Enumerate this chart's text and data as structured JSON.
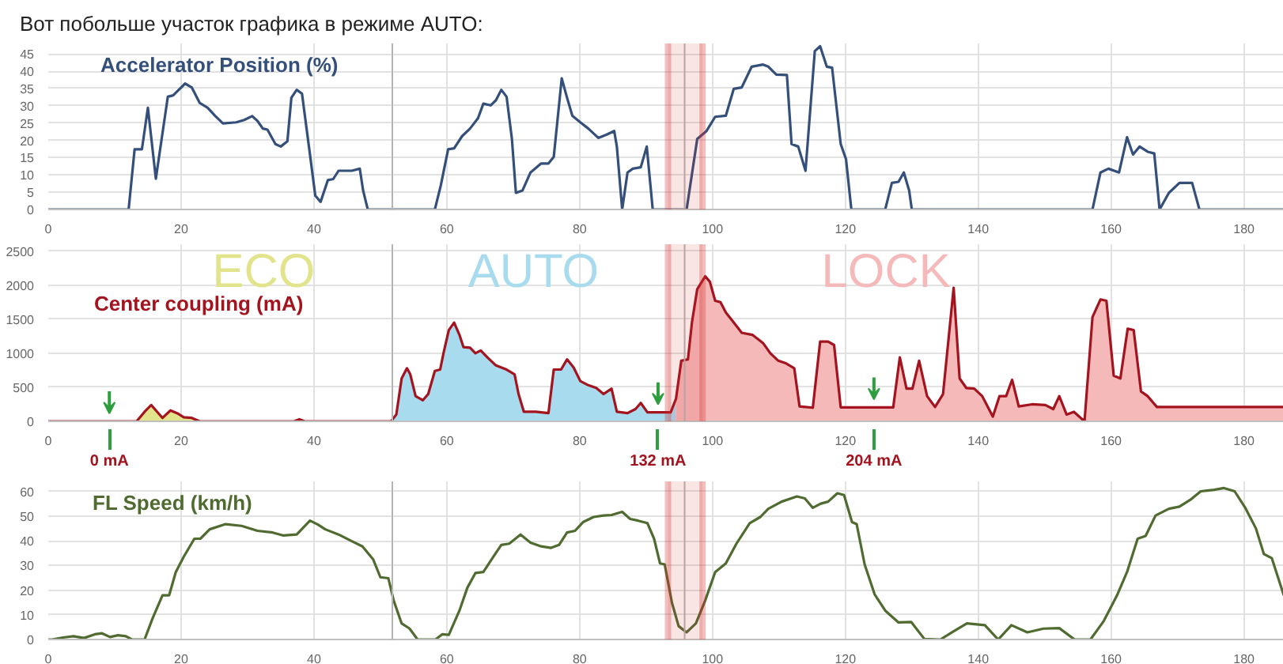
{
  "chart_data": [
    {
      "type": "line",
      "title": "Вот побольше участок графика в режиме AUTO:",
      "xlim": [
        0,
        186
      ],
      "xticks": [
        0,
        20,
        40,
        60,
        80,
        100,
        120,
        140,
        160,
        180
      ],
      "ylim": [
        0,
        48
      ],
      "yticks": [
        0,
        5,
        10,
        15,
        20,
        25,
        30,
        35,
        40,
        45
      ],
      "grid": true,
      "ref_lines": [
        {
          "axis": "x",
          "value": 51.8,
          "color": "#b4b4b4"
        },
        {
          "axis": "x",
          "value": 95.8,
          "color": "#b4b4b4"
        }
      ],
      "bands": [
        {
          "axis": "x",
          "from": 93.3,
          "to": 98.5,
          "color": "#d42b2b"
        }
      ],
      "series": [
        {
          "name": "Accelerator Position (%)",
          "color": "#34507a",
          "x": [
            0,
            12.1,
            13.0,
            14.1,
            15.0,
            16.2,
            18.0,
            18.8,
            20.6,
            21.6,
            22.8,
            24.0,
            25.1,
            26.3,
            28.3,
            29.5,
            30.7,
            31.5,
            32.3,
            33.0,
            34.2,
            35.0,
            36.0,
            36.6,
            37.4,
            38.2,
            39.4,
            40.2,
            41.0,
            42.1,
            42.9,
            43.7,
            45.7,
            46.9,
            47.4,
            48.1,
            58.2,
            59.1,
            60.2,
            61.1,
            62.3,
            63.5,
            64.7,
            65.5,
            66.6,
            67.4,
            68.2,
            69.0,
            69.8,
            70.4,
            71.4,
            72.6,
            74.2,
            75.3,
            76.1,
            77.3,
            78.1,
            78.9,
            80.1,
            81.3,
            82.8,
            84.0,
            85.2,
            85.6,
            86.4,
            87.2,
            88.0,
            89.2,
            90.1,
            91.0,
            96.1,
            97.7,
            99.1,
            100.4,
            102.0,
            103.2,
            104.4,
            105.9,
            107.6,
            108.4,
            109.6,
            111.2,
            111.9,
            112.9,
            114.0,
            115.4,
            116.2,
            117.2,
            118.0,
            119.3,
            120.1,
            120.9,
            126.0,
            127.0,
            128.0,
            128.8,
            129.6,
            130.0,
            157.2,
            158.4,
            159.6,
            161.2,
            162.4,
            163.3,
            164.3,
            165.5,
            166.5,
            167.3,
            168.7,
            170.3,
            172.2,
            173.3,
            186
          ],
          "values": [
            0,
            0,
            17.4,
            17.4,
            29.4,
            8.9,
            32.6,
            33,
            36.4,
            35.3,
            30.8,
            29.4,
            27.1,
            24.9,
            25.2,
            25.9,
            27,
            25.6,
            23.4,
            23.1,
            18.9,
            18.2,
            19.7,
            32.3,
            34.6,
            33.5,
            15.9,
            4,
            2.2,
            8.5,
            8.8,
            11.2,
            11.2,
            11.8,
            5.5,
            0,
            0,
            7,
            17.4,
            17.7,
            21.2,
            23.4,
            26.4,
            30.6,
            30.1,
            31.6,
            34.6,
            32.6,
            20.4,
            4.8,
            5.5,
            10.7,
            13.3,
            13.3,
            15.2,
            37.9,
            32.3,
            27.1,
            25.2,
            23.4,
            20.7,
            21.6,
            22.7,
            18.2,
            0,
            10.7,
            11.8,
            12.2,
            18.2,
            0,
            0,
            20.4,
            22.7,
            26.8,
            27.1,
            34.9,
            35.3,
            41.3,
            41.9,
            41.3,
            39,
            38.9,
            18.9,
            18.2,
            11.2,
            45.8,
            47.2,
            41.3,
            41,
            18.9,
            14.5,
            0,
            0,
            7.7,
            8,
            10.7,
            5.5,
            0,
            0,
            10.7,
            11.8,
            10.7,
            20.9,
            15.9,
            18.2,
            16.7,
            16.2,
            0,
            4.8,
            7.7,
            7.7,
            0,
            0
          ]
        }
      ]
    },
    {
      "type": "line",
      "xlim": [
        0,
        186
      ],
      "xticks": [
        0,
        20,
        40,
        60,
        80,
        100,
        120,
        140,
        160,
        180
      ],
      "ylim": [
        0,
        2600
      ],
      "yticks": [
        0,
        500,
        1000,
        1500,
        2000,
        2500
      ],
      "grid": true,
      "ref_lines": [
        {
          "axis": "x",
          "value": 51.8,
          "color": "#b4b4b4"
        },
        {
          "axis": "x",
          "value": 95.8,
          "color": "#b4b4b4"
        }
      ],
      "bands": [
        {
          "axis": "x",
          "from": 93.3,
          "to": 98.5,
          "color": "#d42b2b"
        }
      ],
      "annotations": [
        {
          "text": "0 mA",
          "x": 9.2,
          "y": 0
        },
        {
          "text": "132 mA",
          "x": 91.8,
          "y": 132
        },
        {
          "text": "204 mA",
          "x": 124.3,
          "y": 204
        }
      ],
      "series": [
        {
          "name": "ECO",
          "type": "area",
          "color": "#e2e48c",
          "x": [
            13.3,
            14.5,
            15.5,
            16.4,
            17.2,
            18.4,
            19.4,
            20.4,
            21.6,
            22.8,
            37.0,
            37.8,
            38.6,
            51.6
          ],
          "values": [
            0,
            140,
            240,
            140,
            50,
            160,
            120,
            60,
            50,
            0,
            0,
            30,
            0,
            0
          ]
        },
        {
          "name": "AUTO",
          "type": "area",
          "color": "#a9dbef",
          "x": [
            51.6,
            52.4,
            53.2,
            54.0,
            54.5,
            55.3,
            56.4,
            57.2,
            58.2,
            59.0,
            59.5,
            60.3,
            61.1,
            61.9,
            62.5,
            63.5,
            64.3,
            65.1,
            66.2,
            67.4,
            69.0,
            70.2,
            70.8,
            71.6,
            73.4,
            75.3,
            76.1,
            77.2,
            78.1,
            79.1,
            80.1,
            81.3,
            82.5,
            83.6,
            84.8,
            85.6,
            87.2,
            88.4,
            89.2,
            90.2,
            93.7,
            94.5
          ],
          "values": [
            0,
            100,
            630,
            780,
            690,
            370,
            310,
            400,
            740,
            760,
            1000,
            1340,
            1450,
            1270,
            1090,
            1080,
            1000,
            1040,
            930,
            820,
            760,
            690,
            400,
            140,
            140,
            120,
            760,
            760,
            910,
            790,
            590,
            530,
            490,
            400,
            480,
            140,
            120,
            180,
            270,
            132,
            132,
            330
          ]
        },
        {
          "name": "LOCK",
          "type": "area",
          "color": "#f5b9b9",
          "x": [
            94.5,
            95.3,
            96.3,
            96.9,
            97.7,
            98.9,
            99.6,
            100.4,
            101.2,
            102.0,
            103.2,
            104.4,
            106.0,
            107.6,
            108.7,
            109.9,
            111.1,
            112.3,
            113.1,
            115.1,
            116.2,
            117.4,
            118.3,
            119.3,
            127.2,
            128.2,
            129.2,
            130.1,
            131.1,
            132.3,
            133.5,
            134.7,
            136.3,
            137.2,
            138.2,
            139.4,
            140.6,
            142.2,
            143.2,
            144.2,
            145.1,
            146.1,
            148.1,
            150.1,
            151.3,
            152.2,
            153.3,
            154.4,
            156.0,
            157.2,
            158.4,
            159.3,
            160.4,
            161.4,
            162.5,
            163.4,
            164.5,
            165.5,
            166.9,
            186
          ],
          "values": [
            330,
            890,
            910,
            1450,
            1940,
            2130,
            2050,
            1770,
            1750,
            1600,
            1450,
            1300,
            1270,
            1150,
            1000,
            890,
            850,
            780,
            220,
            200,
            1170,
            1170,
            1120,
            204,
            204,
            940,
            480,
            480,
            890,
            370,
            210,
            400,
            1960,
            630,
            490,
            480,
            370,
            70,
            370,
            370,
            610,
            220,
            250,
            240,
            180,
            370,
            100,
            140,
            0,
            1530,
            1790,
            1770,
            670,
            630,
            1360,
            1340,
            440,
            370,
            210,
            210
          ]
        },
        {
          "name": "Center coupling (mA)",
          "type": "line",
          "color": "#a3141f",
          "x": [
            0,
            13.3,
            14.5,
            15.5,
            16.4,
            17.2,
            18.4,
            19.4,
            20.4,
            21.6,
            22.8,
            37.0,
            37.8,
            38.6,
            51.6,
            52.4,
            53.2,
            54.0,
            54.5,
            55.3,
            56.4,
            57.2,
            58.2,
            59.0,
            59.5,
            60.3,
            61.1,
            61.9,
            62.5,
            63.5,
            64.3,
            65.1,
            66.2,
            67.4,
            69.0,
            70.2,
            70.8,
            71.6,
            73.4,
            75.3,
            76.1,
            77.2,
            78.1,
            79.1,
            80.1,
            81.3,
            82.5,
            83.6,
            84.8,
            85.6,
            87.2,
            88.4,
            89.2,
            90.2,
            93.7,
            94.5,
            95.3,
            96.3,
            96.9,
            97.7,
            98.9,
            99.6,
            100.4,
            101.2,
            102.0,
            103.2,
            104.4,
            106.0,
            107.6,
            108.7,
            109.9,
            111.1,
            112.3,
            113.1,
            115.1,
            116.2,
            117.4,
            118.3,
            119.3,
            127.2,
            128.2,
            129.2,
            130.1,
            131.1,
            132.3,
            133.5,
            134.7,
            136.3,
            137.2,
            138.2,
            139.4,
            140.6,
            142.2,
            143.2,
            144.2,
            145.1,
            146.1,
            148.1,
            150.1,
            151.3,
            152.2,
            153.3,
            154.4,
            156.0,
            157.2,
            158.4,
            159.3,
            160.4,
            161.4,
            162.5,
            163.4,
            164.5,
            165.5,
            166.9,
            186
          ],
          "values": [
            0,
            0,
            140,
            240,
            140,
            50,
            160,
            120,
            60,
            50,
            0,
            0,
            30,
            0,
            0,
            100,
            630,
            780,
            690,
            370,
            310,
            400,
            740,
            760,
            1000,
            1340,
            1450,
            1270,
            1090,
            1080,
            1000,
            1040,
            930,
            820,
            760,
            690,
            400,
            140,
            140,
            120,
            760,
            760,
            910,
            790,
            590,
            530,
            490,
            400,
            480,
            140,
            120,
            180,
            270,
            132,
            132,
            330,
            890,
            910,
            1450,
            1940,
            2130,
            2050,
            1770,
            1750,
            1600,
            1450,
            1300,
            1270,
            1150,
            1000,
            890,
            850,
            780,
            220,
            200,
            1170,
            1170,
            1120,
            204,
            204,
            940,
            480,
            480,
            890,
            370,
            210,
            400,
            1960,
            630,
            490,
            480,
            370,
            70,
            370,
            370,
            610,
            220,
            250,
            240,
            180,
            370,
            100,
            140,
            0,
            1530,
            1790,
            1770,
            670,
            630,
            1360,
            1340,
            440,
            370,
            210,
            210
          ]
        }
      ]
    },
    {
      "type": "line",
      "xlim": [
        0,
        186
      ],
      "xticks": [
        0,
        20,
        40,
        60,
        80,
        100,
        120,
        140,
        160,
        180
      ],
      "ylim": [
        0,
        64
      ],
      "yticks": [
        0,
        10,
        20,
        30,
        40,
        50,
        60
      ],
      "grid": true,
      "ref_lines": [
        {
          "axis": "x",
          "value": 51.8,
          "color": "#b4b4b4"
        },
        {
          "axis": "x",
          "value": 95.8,
          "color": "#b4b4b4"
        }
      ],
      "bands": [
        {
          "axis": "x",
          "from": 93.3,
          "to": 98.5,
          "color": "#d42b2b"
        }
      ],
      "series": [
        {
          "name": "FL Speed (km/h)",
          "color": "#4f6b30",
          "x": [
            0,
            0.6,
            2.2,
            3.8,
            5.4,
            7.0,
            8.1,
            9.3,
            10.5,
            11.7,
            12.6,
            14.5,
            15.7,
            17.2,
            18.2,
            19.2,
            20.4,
            22.0,
            22.9,
            24.3,
            26.7,
            29.1,
            31.5,
            33.8,
            35.4,
            37.4,
            39.4,
            40.6,
            41.7,
            43.7,
            45.7,
            47.3,
            48.9,
            50.0,
            51.2,
            52.0,
            53.2,
            54.4,
            55.6,
            58.3,
            59.3,
            60.3,
            61.9,
            63.1,
            64.3,
            65.5,
            67.0,
            68.2,
            69.4,
            71.1,
            72.6,
            74.2,
            75.7,
            76.9,
            78.1,
            79.3,
            80.5,
            82.1,
            83.6,
            84.8,
            86.4,
            87.6,
            88.8,
            90.2,
            91.2,
            92.1,
            92.8,
            93.9,
            94.9,
            96.1,
            97.5,
            98.9,
            100.4,
            102.0,
            103.6,
            105.6,
            107.2,
            108.4,
            110.4,
            112.7,
            113.9,
            115.1,
            116.3,
            117.4,
            118.8,
            119.8,
            121.0,
            121.7,
            122.9,
            124.4,
            126.0,
            128.0,
            129.9,
            131.9,
            134.3,
            136.3,
            138.3,
            141.0,
            143.0,
            145.0,
            147.4,
            149.8,
            152.2,
            154.5,
            156.9,
            158.9,
            160.9,
            162.4,
            164.0,
            165.2,
            166.7,
            168.7,
            170.3,
            171.9,
            173.5,
            175.5,
            177.0,
            178.6,
            180.2,
            181.8,
            183.0,
            184.2,
            186.0
          ],
          "values": [
            0,
            0,
            0.8,
            1.3,
            0.6,
            2.1,
            2.5,
            1.0,
            1.7,
            1.3,
            0,
            0,
            8.5,
            17.9,
            17.9,
            27.3,
            33.5,
            40.8,
            40.8,
            44.6,
            46.7,
            46.0,
            44.0,
            43.3,
            42.1,
            42.5,
            48.1,
            46.5,
            44.6,
            42.5,
            39.8,
            37.7,
            32.5,
            25.2,
            24.8,
            15.8,
            6.5,
            4.4,
            0,
            0,
            2.1,
            1.9,
            11.7,
            21.0,
            26.9,
            27.3,
            33.5,
            38.3,
            38.8,
            42.5,
            39.2,
            37.7,
            37.1,
            38.3,
            43.3,
            44.0,
            47.5,
            49.6,
            50.2,
            50.4,
            51.7,
            48.8,
            48.1,
            47.1,
            40.8,
            30.8,
            30.4,
            14.8,
            5.4,
            2.9,
            6.5,
            15.8,
            27.3,
            30.8,
            38.8,
            47.1,
            49.6,
            52.9,
            55.8,
            57.9,
            57.1,
            53.3,
            55.0,
            55.8,
            59.2,
            58.5,
            47.5,
            46.7,
            30.4,
            18.3,
            11.7,
            6.9,
            7.1,
            0.2,
            0,
            3.3,
            6.5,
            5.8,
            0,
            5.8,
            2.9,
            4.4,
            4.6,
            0,
            0,
            7.5,
            17.9,
            27.3,
            40.8,
            41.9,
            50.2,
            52.9,
            53.8,
            56.5,
            60.0,
            60.6,
            61.3,
            60.0,
            53.3,
            45.0,
            34.6,
            32.9,
            17.9
          ]
        }
      ]
    }
  ]
}
